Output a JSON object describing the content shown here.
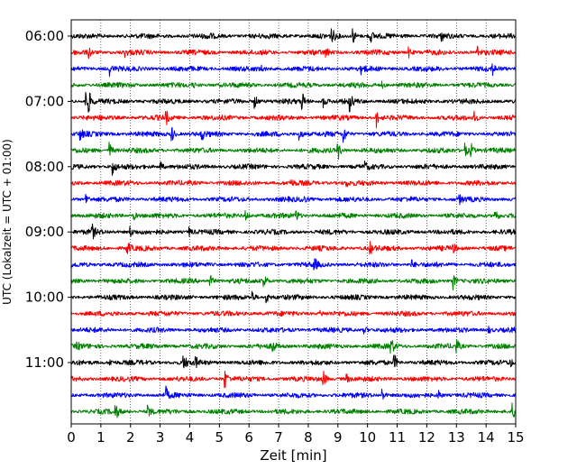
{
  "chart_data": {
    "type": "line",
    "title": "",
    "xlabel": "Zeit  [min]",
    "ylabel": "UTC (Lokalzeit = UTC + 01:00)",
    "xlim": [
      0,
      15
    ],
    "x_ticks": [
      "0",
      "1",
      "2",
      "3",
      "4",
      "5",
      "6",
      "7",
      "8",
      "9",
      "10",
      "11",
      "12",
      "13",
      "14",
      "15"
    ],
    "y_tick_labels": [
      "06:00",
      "07:00",
      "08:00",
      "09:00",
      "10:00",
      "11:00"
    ],
    "trace_colors": [
      "#000000",
      "#ff0000",
      "#0000ff",
      "#008000"
    ],
    "trace_start_times": [
      "06:00",
      "06:15",
      "06:30",
      "06:45",
      "07:00",
      "07:15",
      "07:30",
      "07:45",
      "08:00",
      "08:15",
      "08:30",
      "08:45",
      "09:00",
      "09:15",
      "09:30",
      "09:45",
      "10:00",
      "10:15",
      "10:30",
      "10:45",
      "11:00",
      "11:15",
      "11:30",
      "11:45"
    ],
    "trace_interval_minutes": 15,
    "grid": "vertical dotted lines at each minute",
    "events": [
      [
        [
          4.6,
          0.45
        ],
        [
          8.8,
          0.7
        ],
        [
          9.5,
          0.9
        ],
        [
          10.1,
          0.6
        ],
        [
          12.5,
          0.4
        ]
      ],
      [
        [
          0.6,
          0.5
        ],
        [
          1.8,
          0.4
        ],
        [
          8.6,
          0.4
        ],
        [
          11.4,
          0.5
        ],
        [
          13.7,
          0.7
        ]
      ],
      [
        [
          1.3,
          0.6
        ],
        [
          6.4,
          0.3
        ],
        [
          9.8,
          0.5
        ],
        [
          14.2,
          0.6
        ]
      ],
      [
        [
          4.1,
          0.3
        ],
        [
          10.5,
          0.3
        ]
      ],
      [
        [
          0.5,
          1.0
        ],
        [
          0.6,
          0.8
        ],
        [
          6.2,
          0.7
        ],
        [
          7.8,
          0.9
        ],
        [
          8.5,
          0.7
        ],
        [
          9.4,
          0.9
        ]
      ],
      [
        [
          3.2,
          0.7
        ],
        [
          10.3,
          0.9
        ],
        [
          13.6,
          0.5
        ]
      ],
      [
        [
          0.3,
          0.6
        ],
        [
          3.4,
          0.8
        ],
        [
          4.4,
          0.6
        ],
        [
          7.7,
          0.9
        ],
        [
          9.2,
          0.8
        ]
      ],
      [
        [
          1.3,
          0.8
        ],
        [
          9.0,
          1.0
        ],
        [
          13.3,
          0.7
        ],
        [
          13.5,
          0.6
        ]
      ],
      [
        [
          1.4,
          0.8
        ],
        [
          3.0,
          0.6
        ],
        [
          9.9,
          0.4
        ]
      ],
      [
        [
          7.4,
          0.3
        ],
        [
          9.3,
          0.3
        ]
      ],
      [
        [
          0.5,
          0.6
        ],
        [
          7.8,
          0.5
        ],
        [
          13.1,
          0.4
        ]
      ],
      [
        [
          2.1,
          0.5
        ],
        [
          5.9,
          0.4
        ],
        [
          7.6,
          0.5
        ],
        [
          14.3,
          1.0
        ]
      ],
      [
        [
          0.7,
          0.8
        ],
        [
          2.0,
          0.5
        ],
        [
          4.0,
          0.4
        ]
      ],
      [
        [
          1.9,
          0.7
        ],
        [
          10.1,
          0.5
        ],
        [
          12.9,
          0.4
        ]
      ],
      [
        [
          8.2,
          0.7
        ],
        [
          11.5,
          0.4
        ]
      ],
      [
        [
          4.7,
          0.6
        ],
        [
          6.5,
          0.9
        ],
        [
          12.9,
          0.8
        ]
      ],
      [
        [
          6.1,
          0.6
        ],
        [
          6.6,
          0.5
        ]
      ],
      [
        [
          8.4,
          0.3
        ]
      ],
      [
        [
          9.9,
          0.4
        ],
        [
          14.1,
          0.3
        ]
      ],
      [
        [
          0.2,
          0.4
        ],
        [
          6.8,
          0.6
        ],
        [
          10.8,
          0.8
        ],
        [
          13.0,
          0.7
        ]
      ],
      [
        [
          1.3,
          0.4
        ],
        [
          3.8,
          0.8
        ],
        [
          4.2,
          0.5
        ],
        [
          10.9,
          0.9
        ],
        [
          14.8,
          0.5
        ]
      ],
      [
        [
          5.2,
          0.9
        ],
        [
          8.5,
          1.0
        ],
        [
          9.3,
          0.4
        ]
      ],
      [
        [
          3.2,
          0.7
        ],
        [
          10.5,
          0.6
        ],
        [
          12.4,
          0.5
        ]
      ],
      [
        [
          1.5,
          0.8
        ],
        [
          2.6,
          0.6
        ],
        [
          14.9,
          0.7
        ]
      ]
    ]
  }
}
